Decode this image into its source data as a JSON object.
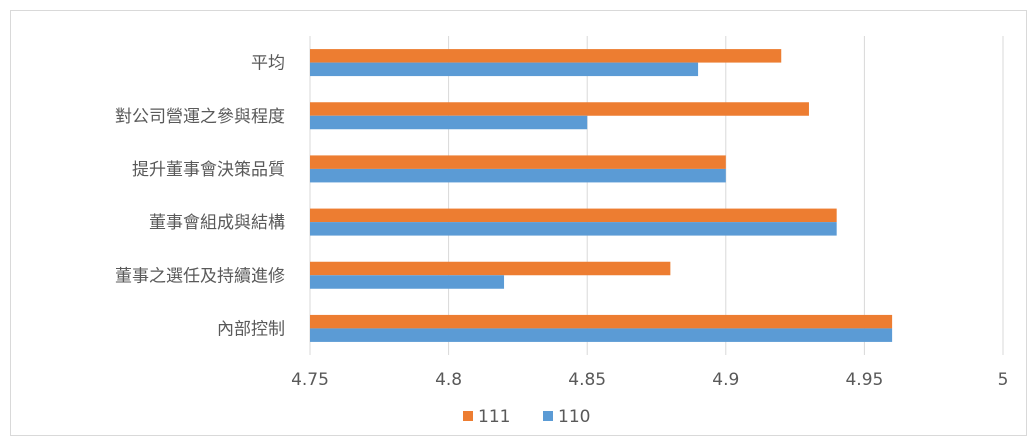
{
  "chart_data": {
    "type": "bar",
    "orientation": "horizontal",
    "categories": [
      "平均",
      "對公司營運之參與程度",
      "提升董事會決策品質",
      "董事會組成與結構",
      "董事之選任及持續進修",
      "內部控制"
    ],
    "series": [
      {
        "name": "111",
        "color": "#ed7d31",
        "values": [
          4.92,
          4.93,
          4.9,
          4.94,
          4.88,
          4.96
        ]
      },
      {
        "name": "110",
        "color": "#5b9bd5",
        "values": [
          4.89,
          4.85,
          4.9,
          4.94,
          4.82,
          4.96
        ]
      }
    ],
    "xlim": [
      4.75,
      5
    ],
    "xticks": [
      "4.75",
      "4.8",
      "4.85",
      "4.9",
      "4.95",
      "5"
    ],
    "grid": true,
    "legend_position": "bottom",
    "gridline_color": "#d9d9d9",
    "axis_text_color": "#595959"
  }
}
